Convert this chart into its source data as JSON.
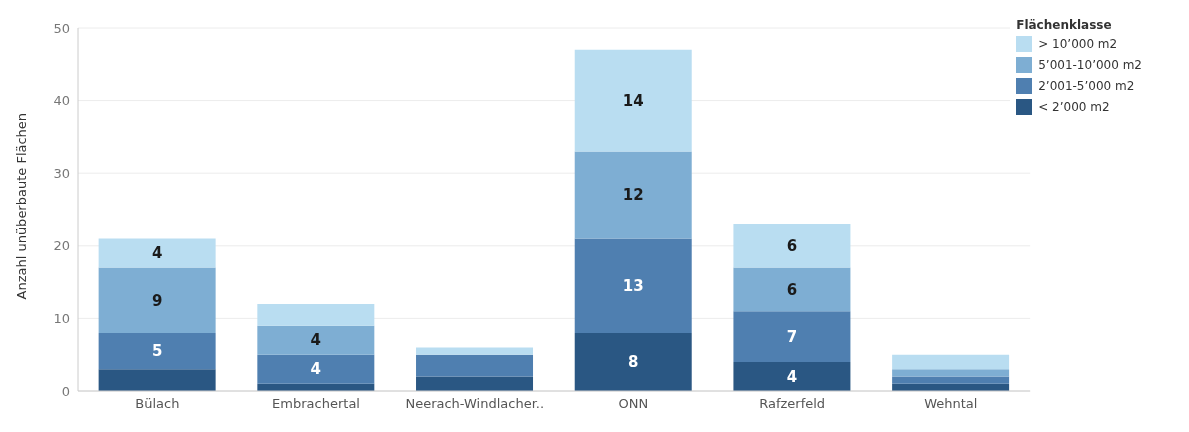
{
  "chart_data": {
    "type": "bar",
    "stacked": true,
    "ylabel": "Anzahl unüberbaute Flächen",
    "legend_title": "Flächenklasse",
    "categories": [
      "Bülach",
      "Embrachertal",
      "Neerach-Windlacher..",
      "ONN",
      "Rafzerfeld",
      "Wehntal"
    ],
    "series": [
      {
        "name": "< 2’000 m2",
        "color": "#2a5783",
        "values": [
          3,
          1,
          2,
          8,
          4,
          1
        ],
        "value_labels": [
          null,
          null,
          null,
          "8",
          "4",
          null
        ]
      },
      {
        "name": "2’001-5’000 m2",
        "color": "#4f7fb0",
        "values": [
          5,
          4,
          3,
          13,
          7,
          1
        ],
        "value_labels": [
          "5",
          "4",
          null,
          "13",
          "7",
          null
        ]
      },
      {
        "name": "5’001-10’000 m2",
        "color": "#7eaed3",
        "values": [
          9,
          4,
          0,
          12,
          6,
          1
        ],
        "value_labels": [
          "9",
          "4",
          null,
          "12",
          "6",
          null
        ]
      },
      {
        "name": "> 10’000 m2",
        "color": "#b9ddf1",
        "values": [
          4,
          3,
          1,
          14,
          6,
          2
        ],
        "value_labels": [
          "4",
          null,
          null,
          "14",
          "6",
          null
        ]
      }
    ],
    "ylim": [
      0,
      50
    ],
    "yticks": [
      0,
      10,
      20,
      30,
      40,
      50
    ],
    "grid": "y",
    "legend": "top right"
  }
}
